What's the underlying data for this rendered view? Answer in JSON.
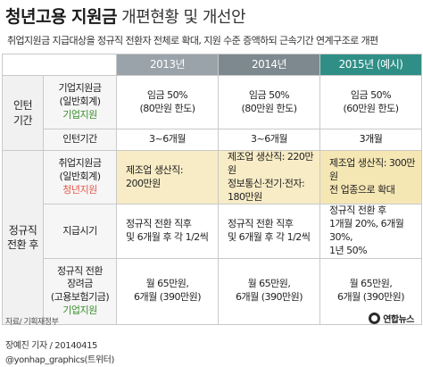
{
  "title": {
    "bold": "청년고용 지원금",
    "rest": "개편현황 및 개선안"
  },
  "subtitle": "취업지원금 지급대상을 정규직 전환자 전체로 확대, 지원 수준 증액하되 근속기간 연계구조로 개편",
  "columns": [
    "2013년",
    "2014년",
    "2015년 (예시)"
  ],
  "groups": {
    "intern": "인턴\n기간",
    "regular": "정규직\n전환 후"
  },
  "rows": {
    "support": {
      "label": "기업지원금\n(일반회계)",
      "tag": "기업지원",
      "c2013": "임금 50%\n(80만원 한도)",
      "c2014": "임금 50%\n(80만원 한도)",
      "c2015": "임금 50%\n(60만원 한도)"
    },
    "period": {
      "label": "인턴기간",
      "c2013": "3~6개월",
      "c2014": "3~6개월",
      "c2015": "3개월"
    },
    "job": {
      "label": "취업지원금\n(일반회계)",
      "tag": "청년지원",
      "c2013": "제조업 생산직:\n200만원",
      "c2014": "제조업 생산직: 220만원\n정보통신·전기·전자: 180만원",
      "c2015": "제조업 생산직: 300만원\n전 업종으로 확대"
    },
    "timing": {
      "label": "지급시기",
      "c2013": "정규직 전환 직후\n및 6개월 후 각 1/2씩",
      "c2014": "정규직 전환 직후\n및 6개월 후 각 1/2씩",
      "c2015": "정규직 전환 후\n1개월 20%, 6개월 30%,\n1년 50%"
    },
    "incentive": {
      "label": "정규직 전환\n장려금\n(고용보험기금)",
      "tag": "기업지원",
      "c2013": "월 65만원,\n6개월 (390만원)",
      "c2014": "월 65만원,\n6개월 (390만원)",
      "c2015": "월 65만원,\n6개월 (390만원)"
    }
  },
  "footer": {
    "source": "자료/ 기획재정부",
    "logo_text": "연합뉴스",
    "credit_name": "장예진 기자 / 20140415",
    "credit_handle": "@yonhap_graphics(트위터)"
  }
}
